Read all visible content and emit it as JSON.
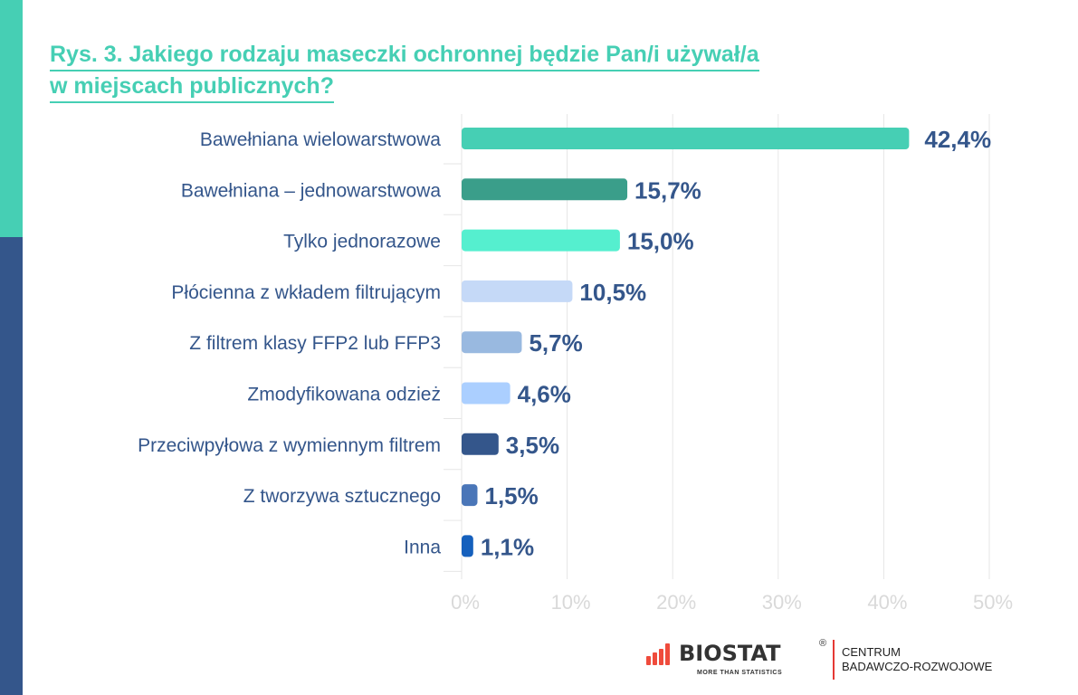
{
  "title_line1": "Rys. 3. Jakiego rodzaju maseczki ochronnej będzie Pan/i używał/a",
  "title_line2": "w miejscach publicznych?",
  "chart_data": {
    "type": "bar",
    "orientation": "horizontal",
    "categories": [
      "Bawełniana wielowarstwowa",
      "Bawełniana – jednowarstwowa",
      "Tylko jednorazowe",
      "Płócienna z wkładem filtrującym",
      "Z filtrem klasy FFP2 lub FFP3",
      "Zmodyfikowana odzież",
      "Przeciwpyłowa z wymiennym filtrem",
      "Z tworzywa sztucznego",
      "Inna"
    ],
    "values": [
      42.4,
      15.7,
      15.0,
      10.5,
      5.7,
      4.6,
      3.5,
      1.5,
      1.1
    ],
    "data_labels": [
      "42,4%",
      "15,7%",
      "15,0%",
      "10,5%",
      "5,7%",
      "4,6%",
      "3,5%",
      "1,5%",
      "1,1%"
    ],
    "colors": [
      "#46cfb4",
      "#3a9e8a",
      "#55efcf",
      "#c5d9f7",
      "#99b9e0",
      "#abcfff",
      "#34568b",
      "#4a76b8",
      "#1560bd"
    ],
    "xlim": [
      0,
      50
    ],
    "xticks": [
      "0%",
      "10%",
      "20%",
      "30%",
      "40%",
      "50%"
    ],
    "grid": true
  },
  "logo": {
    "brand": "BIOSTAT",
    "tagline": "MORE THAN STATISTICS",
    "division_line1": "CENTRUM",
    "division_line2": "BADAWCZO-ROZWOJOWE"
  }
}
